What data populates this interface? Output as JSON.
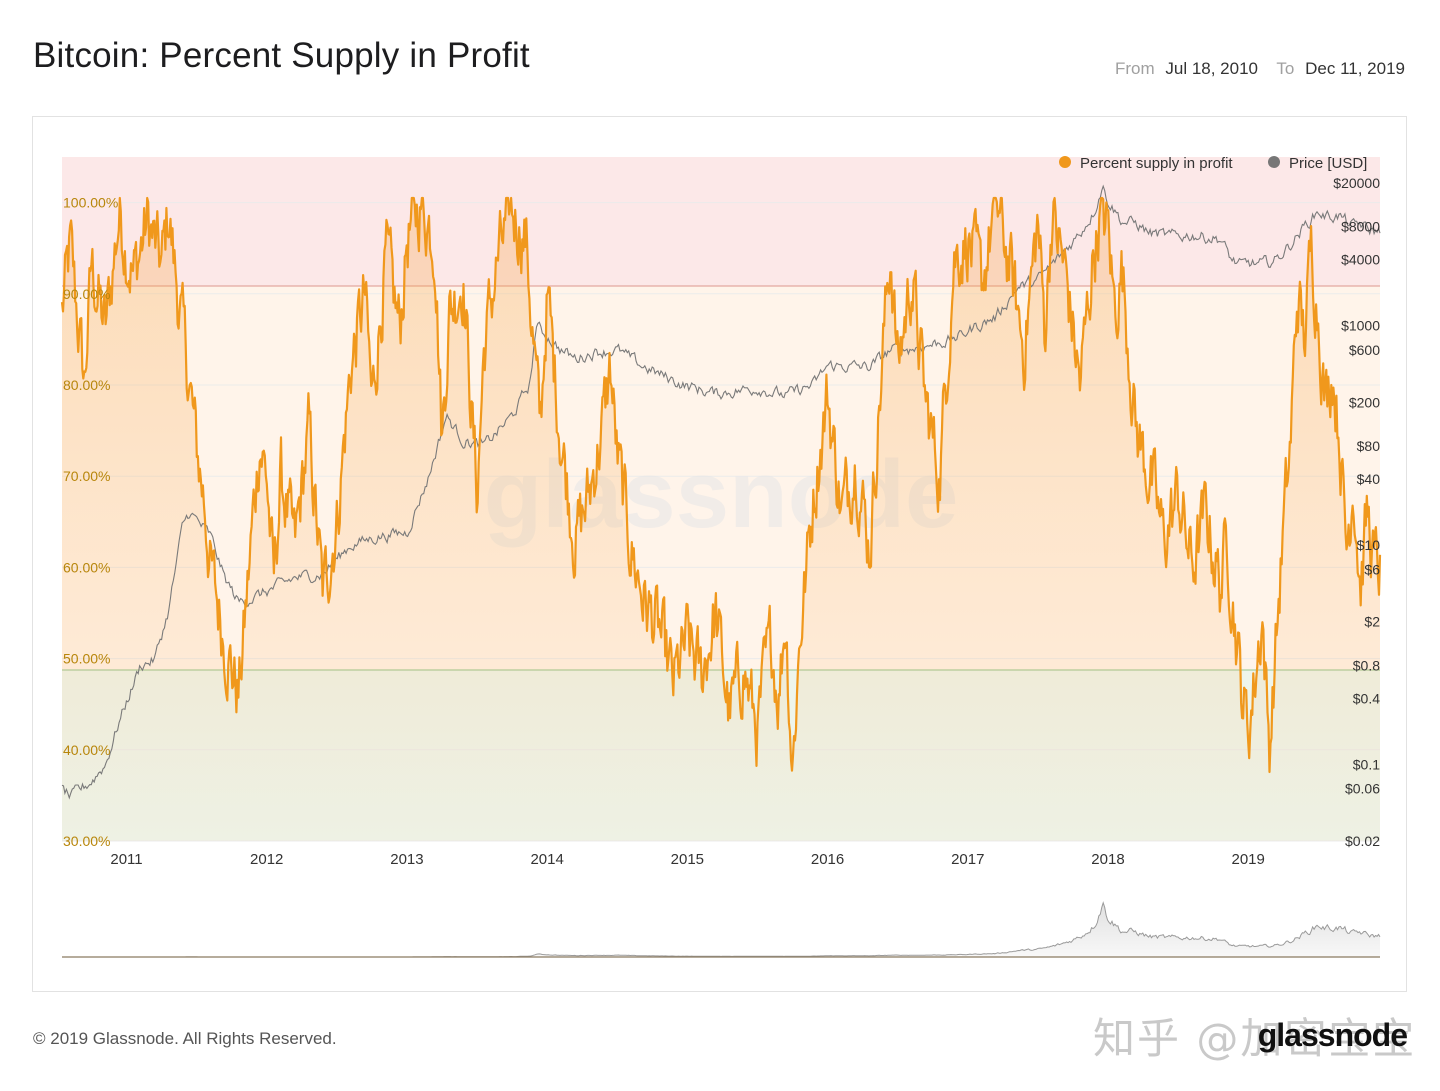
{
  "header": {
    "title": "Bitcoin: Percent Supply in Profit",
    "from_label": "From",
    "from_date": "Jul 18, 2010",
    "to_label": "To",
    "to_date": "Dec 11, 2019"
  },
  "footer": {
    "copyright": "© 2019 Glassnode. All Rights Reserved.",
    "watermark_cn": "知乎 @加密宝宝",
    "logo": "glassnode",
    "chart_watermark": "glassnode"
  },
  "colors": {
    "series_profit": "#f0981c",
    "series_price": "#777777",
    "band_high": "#fce7e7",
    "band_low": "#eef5ec",
    "left_axis_text": "#b8860b"
  },
  "chart_data": {
    "type": "line",
    "title": "Bitcoin: Percent Supply in Profit",
    "legend": [
      "Percent supply in profit",
      "Price [USD]"
    ],
    "legend_position": "top-right",
    "x_range": [
      2010.54,
      2019.94
    ],
    "x_ticks": [
      "2011",
      "2012",
      "2013",
      "2014",
      "2015",
      "2016",
      "2017",
      "2018",
      "2019"
    ],
    "y_left": {
      "ylim": [
        30,
        105
      ],
      "ticks": [
        "100.00%",
        "90.00%",
        "80.00%",
        "70.00%",
        "60.00%",
        "50.00%",
        "40.00%",
        "30.00%"
      ],
      "tick_values": [
        100,
        90,
        80,
        70,
        60,
        50,
        40,
        30
      ]
    },
    "y_right": {
      "scale": "log",
      "ylim": [
        0.02,
        20000
      ],
      "ticks": [
        "$20000",
        "$8000",
        "$4000",
        "$1000",
        "$600",
        "$200",
        "$80",
        "$40",
        "$10",
        "$6",
        "$2",
        "$0.8",
        "$0.4",
        "$0.1",
        "$0.06",
        "$0.02"
      ],
      "tick_values": [
        20000,
        8000,
        4000,
        1000,
        600,
        200,
        80,
        40,
        10,
        6,
        2,
        0.8,
        0.4,
        0.1,
        0.06,
        0.02
      ]
    },
    "thresholds": [
      95,
      50
    ],
    "series": [
      {
        "name": "Percent supply in profit",
        "axis": "left",
        "x": [
          2010.54,
          2010.6,
          2010.7,
          2010.75,
          2010.85,
          2010.95,
          2011.0,
          2011.05,
          2011.15,
          2011.25,
          2011.3,
          2011.35,
          2011.45,
          2011.5,
          2011.55,
          2011.6,
          2011.7,
          2011.8,
          2011.85,
          2011.9,
          2011.95,
          2012.0,
          2012.05,
          2012.1,
          2012.2,
          2012.3,
          2012.4,
          2012.5,
          2012.6,
          2012.7,
          2012.75,
          2012.85,
          2012.95,
          2013.0,
          2013.1,
          2013.2,
          2013.25,
          2013.3,
          2013.4,
          2013.5,
          2013.55,
          2013.65,
          2013.75,
          2013.85,
          2013.9,
          2013.95,
          2014.0,
          2014.1,
          2014.2,
          2014.3,
          2014.4,
          2014.45,
          2014.5,
          2014.6,
          2014.7,
          2014.8,
          2014.9,
          2015.0,
          2015.1,
          2015.2,
          2015.3,
          2015.4,
          2015.5,
          2015.55,
          2015.6,
          2015.65,
          2015.7,
          2015.75,
          2015.8,
          2015.9,
          2016.0,
          2016.1,
          2016.2,
          2016.3,
          2016.4,
          2016.45,
          2016.5,
          2016.6,
          2016.7,
          2016.8,
          2016.85,
          2016.9,
          2017.0,
          2017.1,
          2017.2,
          2017.3,
          2017.4,
          2017.5,
          2017.55,
          2017.6,
          2017.7,
          2017.8,
          2017.9,
          2017.95,
          2018.0,
          2018.05,
          2018.1,
          2018.2,
          2018.3,
          2018.4,
          2018.5,
          2018.6,
          2018.7,
          2018.8,
          2018.85,
          2018.9,
          2018.95,
          2019.0,
          2019.05,
          2019.1,
          2019.15,
          2019.2,
          2019.25,
          2019.3,
          2019.35,
          2019.4,
          2019.45,
          2019.5,
          2019.55,
          2019.6,
          2019.65,
          2019.7,
          2019.75,
          2019.8,
          2019.85,
          2019.9,
          2019.94
        ],
        "values": [
          88,
          95,
          80,
          93,
          86,
          99,
          95,
          92,
          98,
          93,
          99,
          92,
          80,
          73,
          68,
          60,
          52,
          46,
          55,
          65,
          74,
          70,
          58,
          70,
          62,
          75,
          57,
          65,
          82,
          90,
          78,
          94,
          86,
          96,
          100,
          96,
          74,
          88,
          92,
          68,
          84,
          94,
          99,
          96,
          85,
          75,
          90,
          74,
          63,
          68,
          76,
          82,
          72,
          62,
          56,
          53,
          47,
          52,
          48,
          55,
          44,
          49,
          42,
          48,
          52,
          46,
          55,
          38,
          52,
          68,
          79,
          66,
          72,
          62,
          85,
          95,
          82,
          92,
          78,
          70,
          82,
          94,
          96,
          91,
          100,
          93,
          84,
          98,
          86,
          99,
          92,
          80,
          95,
          99,
          97,
          88,
          93,
          75,
          70,
          63,
          68,
          60,
          66,
          58,
          63,
          55,
          47,
          42,
          48,
          55,
          40,
          52,
          64,
          73,
          90,
          85,
          95,
          88,
          78,
          82,
          75,
          62,
          70,
          58,
          66,
          60,
          60
        ]
      },
      {
        "name": "Price [USD]",
        "axis": "right",
        "x": [
          2010.54,
          2010.6,
          2010.75,
          2010.85,
          2010.95,
          2011.1,
          2011.2,
          2011.3,
          2011.4,
          2011.45,
          2011.6,
          2011.7,
          2011.8,
          2011.95,
          2012.2,
          2012.4,
          2012.6,
          2012.8,
          2013.0,
          2013.15,
          2013.28,
          2013.4,
          2013.55,
          2013.75,
          2013.88,
          2013.92,
          2014.0,
          2014.1,
          2014.2,
          2014.35,
          2014.5,
          2014.65,
          2014.8,
          2015.0,
          2015.2,
          2015.5,
          2015.7,
          2015.9,
          2016.0,
          2016.3,
          2016.45,
          2016.6,
          2016.8,
          2016.95,
          2017.0,
          2017.2,
          2017.35,
          2017.5,
          2017.65,
          2017.8,
          2017.9,
          2017.96,
          2018.0,
          2018.1,
          2018.2,
          2018.3,
          2018.45,
          2018.6,
          2018.8,
          2018.88,
          2018.95,
          2019.0,
          2019.1,
          2019.2,
          2019.3,
          2019.4,
          2019.5,
          2019.55,
          2019.65,
          2019.75,
          2019.8,
          2019.85,
          2019.94
        ],
        "values": [
          0.06,
          0.05,
          0.07,
          0.1,
          0.25,
          0.8,
          0.9,
          2.5,
          15,
          20,
          12,
          5,
          3,
          3.5,
          5,
          5.5,
          10,
          12,
          13,
          40,
          150,
          90,
          80,
          150,
          300,
          1000,
          800,
          600,
          500,
          580,
          600,
          450,
          360,
          280,
          240,
          270,
          230,
          290,
          430,
          420,
          600,
          620,
          700,
          800,
          900,
          1200,
          2200,
          2600,
          4200,
          7000,
          11000,
          19000,
          14000,
          9000,
          8500,
          7000,
          6500,
          6700,
          6200,
          4000,
          3500,
          3700,
          3600,
          4000,
          5500,
          8000,
          11000,
          10000,
          10000,
          8000,
          8500,
          7500,
          7200
        ]
      }
    ]
  }
}
